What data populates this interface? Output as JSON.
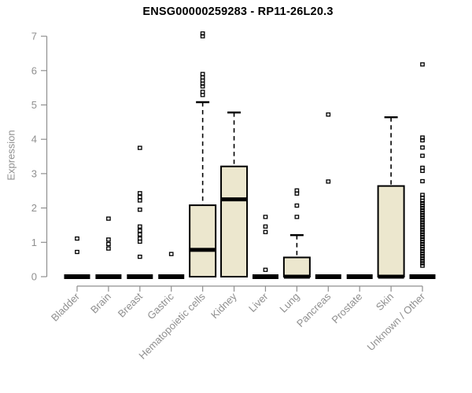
{
  "title": "ENSG00000259283 - RP11-26L20.3",
  "chart_data": {
    "type": "boxplot",
    "title": "ENSG00000259283 - RP11-26L20.3",
    "xlabel": "",
    "ylabel": "Expression",
    "ylim": [
      0,
      7
    ],
    "yticks": [
      0,
      1,
      2,
      3,
      4,
      5,
      6,
      7
    ],
    "grid": false,
    "legend": false,
    "colors": {
      "box_fill": "#ece7ce",
      "box_stroke": "#000000",
      "median": "#000000",
      "outlier": "#000000",
      "axis": "#8f8f8f",
      "title": "#000000"
    },
    "categories": [
      "Bladder",
      "Brain",
      "Breast",
      "Gastric",
      "Hematopoietic cells",
      "Kidney",
      "Liver",
      "Lung",
      "Pancreas",
      "Prostate",
      "Skin",
      "Unknown / Other"
    ],
    "series": [
      {
        "name": "Bladder",
        "q1": 0,
        "median": 0,
        "q3": 0,
        "whisker_low": 0,
        "whisker_high": 0,
        "outliers": [
          0.72,
          1.11
        ]
      },
      {
        "name": "Brain",
        "q1": 0,
        "median": 0,
        "q3": 0,
        "whisker_low": 0,
        "whisker_high": 0,
        "outliers": [
          0.82,
          0.95,
          1.08,
          1.69
        ]
      },
      {
        "name": "Breast",
        "q1": 0,
        "median": 0,
        "q3": 0,
        "whisker_low": 0,
        "whisker_high": 0,
        "outliers": [
          0.58,
          1.02,
          1.11,
          1.23,
          1.34,
          1.46,
          1.95,
          2.22,
          2.32,
          2.43,
          3.75
        ]
      },
      {
        "name": "Gastric",
        "q1": 0,
        "median": 0,
        "q3": 0,
        "whisker_low": 0,
        "whisker_high": 0,
        "outliers": [
          0.66
        ]
      },
      {
        "name": "Hematopoietic cells",
        "q1": 0,
        "median": 0.78,
        "q3": 2.08,
        "whisker_low": 0,
        "whisker_high": 5.08,
        "outliers": [
          5.29,
          5.38,
          5.54,
          5.62,
          5.71,
          5.8,
          5.9,
          7.0,
          7.08
        ]
      },
      {
        "name": "Kidney",
        "q1": 0,
        "median": 2.25,
        "q3": 3.21,
        "whisker_low": 0,
        "whisker_high": 4.78,
        "outliers": []
      },
      {
        "name": "Liver",
        "q1": 0,
        "median": 0,
        "q3": 0,
        "whisker_low": 0,
        "whisker_high": 0,
        "outliers": [
          0.2,
          1.3,
          1.46,
          1.74
        ]
      },
      {
        "name": "Lung",
        "q1": 0,
        "median": 0,
        "q3": 0.56,
        "whisker_low": 0,
        "whisker_high": 1.21,
        "outliers": [
          1.74,
          2.07,
          2.42,
          2.51
        ]
      },
      {
        "name": "Pancreas",
        "q1": 0,
        "median": 0,
        "q3": 0,
        "whisker_low": 0,
        "whisker_high": 0,
        "outliers": [
          2.77,
          4.72
        ]
      },
      {
        "name": "Prostate",
        "q1": 0,
        "median": 0,
        "q3": 0,
        "whisker_low": 0,
        "whisker_high": 0,
        "outliers": []
      },
      {
        "name": "Skin",
        "q1": 0,
        "median": 0,
        "q3": 2.64,
        "whisker_low": 0,
        "whisker_high": 4.64,
        "outliers": []
      },
      {
        "name": "Unknown / Other",
        "q1": 0,
        "median": 0,
        "q3": 0,
        "whisker_low": 0,
        "whisker_high": 0,
        "outliers": [
          0.32,
          0.39,
          0.46,
          0.53,
          0.6,
          0.67,
          0.74,
          0.81,
          0.88,
          0.95,
          1.02,
          1.09,
          1.16,
          1.23,
          1.3,
          1.37,
          1.44,
          1.51,
          1.58,
          1.65,
          1.72,
          1.79,
          1.86,
          1.93,
          2.0,
          2.07,
          2.14,
          2.21,
          2.3,
          2.38,
          2.78,
          3.08,
          3.17,
          3.52,
          3.76,
          3.97,
          4.05,
          6.18
        ]
      }
    ]
  }
}
